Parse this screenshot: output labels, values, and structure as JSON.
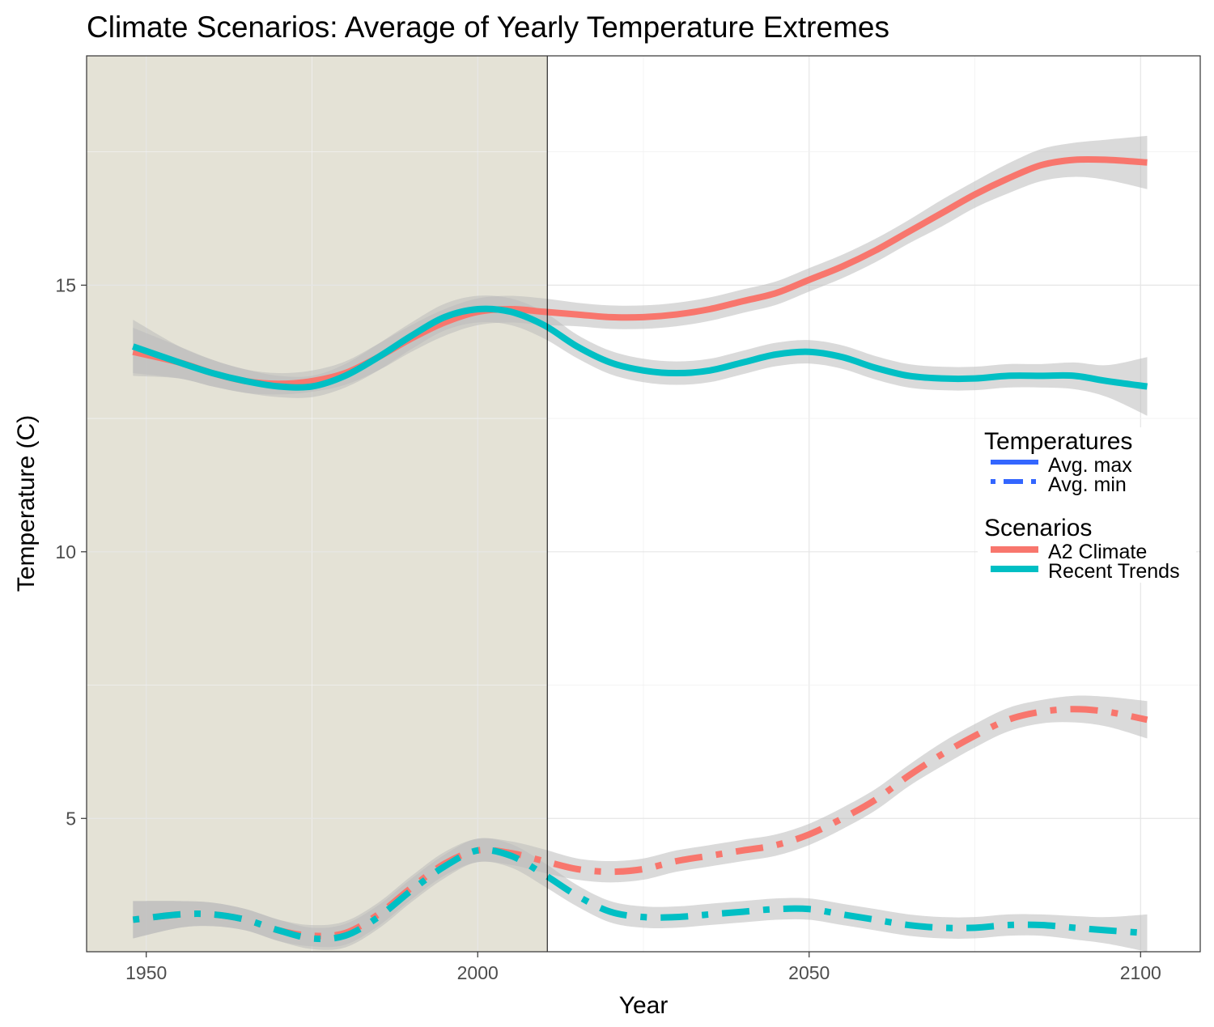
{
  "chart_data": {
    "type": "line",
    "title": "Climate Scenarios: Average of Yearly Temperature Extremes",
    "xlabel": "Year",
    "ylabel": "Temperature (C)",
    "xlim": [
      1941,
      2109
    ],
    "ylim": [
      2.5,
      19.3
    ],
    "x_ticks": [
      1950,
      2000,
      2050,
      2100
    ],
    "y_ticks": [
      5,
      10,
      15
    ],
    "grid": true,
    "shaded_region": {
      "from": 1941,
      "to": 2010.5,
      "color": "#e4e2d6"
    },
    "vline_x": 2010.5,
    "legend": {
      "position": "right",
      "groups": [
        {
          "title": "Temperatures",
          "items": [
            {
              "label": "Avg. max",
              "linetype": "solid"
            },
            {
              "label": "Avg. min",
              "linetype": "dotdash"
            }
          ]
        },
        {
          "title": "Scenarios",
          "items": [
            {
              "label": "A2 Climate",
              "color": "#f8766d"
            },
            {
              "label": "Recent Trends",
              "color": "#00bfc4"
            }
          ]
        }
      ]
    },
    "legend_key_color": "#3366ff",
    "band_color": "#bbbbbb",
    "series": [
      {
        "name": "A2 Climate",
        "temperature": "Avg. max",
        "color": "#f8766d",
        "linetype": "solid",
        "points": [
          [
            1948,
            13.75
          ],
          [
            1955,
            13.55
          ],
          [
            1960,
            13.35
          ],
          [
            1965,
            13.2
          ],
          [
            1970,
            13.15
          ],
          [
            1975,
            13.2
          ],
          [
            1980,
            13.35
          ],
          [
            1985,
            13.65
          ],
          [
            1990,
            14.0
          ],
          [
            1995,
            14.3
          ],
          [
            2000,
            14.5
          ],
          [
            2005,
            14.55
          ],
          [
            2010,
            14.5
          ],
          [
            2015,
            14.45
          ],
          [
            2020,
            14.4
          ],
          [
            2025,
            14.4
          ],
          [
            2030,
            14.45
          ],
          [
            2035,
            14.55
          ],
          [
            2040,
            14.7
          ],
          [
            2045,
            14.85
          ],
          [
            2050,
            15.1
          ],
          [
            2055,
            15.35
          ],
          [
            2060,
            15.65
          ],
          [
            2065,
            16.0
          ],
          [
            2070,
            16.35
          ],
          [
            2075,
            16.7
          ],
          [
            2080,
            17.0
          ],
          [
            2085,
            17.25
          ],
          [
            2090,
            17.35
          ],
          [
            2095,
            17.35
          ],
          [
            2101,
            17.3
          ]
        ],
        "band": [
          0.45,
          0.3,
          0.25,
          0.22,
          0.2,
          0.2,
          0.22,
          0.25,
          0.25,
          0.25,
          0.25,
          0.25,
          0.25,
          0.22,
          0.22,
          0.22,
          0.22,
          0.22,
          0.22,
          0.22,
          0.22,
          0.22,
          0.22,
          0.22,
          0.25,
          0.25,
          0.28,
          0.3,
          0.32,
          0.38,
          0.5
        ]
      },
      {
        "name": "Recent Trends",
        "temperature": "Avg. max",
        "color": "#00bfc4",
        "linetype": "solid",
        "points": [
          [
            1948,
            13.85
          ],
          [
            1955,
            13.55
          ],
          [
            1960,
            13.35
          ],
          [
            1965,
            13.2
          ],
          [
            1970,
            13.1
          ],
          [
            1975,
            13.1
          ],
          [
            1980,
            13.3
          ],
          [
            1985,
            13.65
          ],
          [
            1990,
            14.05
          ],
          [
            1995,
            14.4
          ],
          [
            2000,
            14.55
          ],
          [
            2005,
            14.5
          ],
          [
            2010,
            14.25
          ],
          [
            2015,
            13.85
          ],
          [
            2020,
            13.55
          ],
          [
            2025,
            13.4
          ],
          [
            2030,
            13.35
          ],
          [
            2035,
            13.4
          ],
          [
            2040,
            13.55
          ],
          [
            2045,
            13.7
          ],
          [
            2050,
            13.75
          ],
          [
            2055,
            13.65
          ],
          [
            2060,
            13.45
          ],
          [
            2065,
            13.3
          ],
          [
            2070,
            13.25
          ],
          [
            2075,
            13.25
          ],
          [
            2080,
            13.3
          ],
          [
            2085,
            13.3
          ],
          [
            2090,
            13.3
          ],
          [
            2095,
            13.2
          ],
          [
            2101,
            13.1
          ]
        ],
        "band": [
          0.5,
          0.3,
          0.25,
          0.22,
          0.2,
          0.2,
          0.22,
          0.25,
          0.25,
          0.25,
          0.25,
          0.25,
          0.25,
          0.22,
          0.22,
          0.22,
          0.22,
          0.22,
          0.22,
          0.22,
          0.22,
          0.22,
          0.22,
          0.22,
          0.22,
          0.22,
          0.22,
          0.22,
          0.25,
          0.3,
          0.55
        ]
      },
      {
        "name": "A2 Climate",
        "temperature": "Avg. min",
        "color": "#f8766d",
        "linetype": "dotdash",
        "points": [
          [
            1948,
            3.1
          ],
          [
            1955,
            3.2
          ],
          [
            1960,
            3.2
          ],
          [
            1965,
            3.1
          ],
          [
            1970,
            2.9
          ],
          [
            1975,
            2.8
          ],
          [
            1980,
            2.85
          ],
          [
            1985,
            3.2
          ],
          [
            1990,
            3.7
          ],
          [
            1995,
            4.15
          ],
          [
            2000,
            4.4
          ],
          [
            2005,
            4.35
          ],
          [
            2010,
            4.2
          ],
          [
            2015,
            4.05
          ],
          [
            2020,
            4.0
          ],
          [
            2025,
            4.05
          ],
          [
            2030,
            4.2
          ],
          [
            2035,
            4.3
          ],
          [
            2040,
            4.4
          ],
          [
            2045,
            4.5
          ],
          [
            2050,
            4.7
          ],
          [
            2055,
            5.0
          ],
          [
            2060,
            5.35
          ],
          [
            2065,
            5.8
          ],
          [
            2070,
            6.2
          ],
          [
            2075,
            6.55
          ],
          [
            2080,
            6.85
          ],
          [
            2085,
            7.0
          ],
          [
            2090,
            7.05
          ],
          [
            2095,
            7.0
          ],
          [
            2101,
            6.85
          ]
        ],
        "band": [
          0.35,
          0.25,
          0.22,
          0.2,
          0.2,
          0.2,
          0.22,
          0.22,
          0.22,
          0.22,
          0.22,
          0.22,
          0.22,
          0.2,
          0.2,
          0.2,
          0.2,
          0.2,
          0.2,
          0.2,
          0.2,
          0.2,
          0.2,
          0.2,
          0.22,
          0.22,
          0.22,
          0.22,
          0.25,
          0.28,
          0.35
        ]
      },
      {
        "name": "Recent Trends",
        "temperature": "Avg. min",
        "color": "#00bfc4",
        "linetype": "dotdash",
        "points": [
          [
            1948,
            3.1
          ],
          [
            1955,
            3.2
          ],
          [
            1960,
            3.2
          ],
          [
            1965,
            3.1
          ],
          [
            1970,
            2.9
          ],
          [
            1975,
            2.75
          ],
          [
            1980,
            2.8
          ],
          [
            1985,
            3.15
          ],
          [
            1990,
            3.65
          ],
          [
            1995,
            4.1
          ],
          [
            2000,
            4.4
          ],
          [
            2005,
            4.3
          ],
          [
            2010,
            3.95
          ],
          [
            2015,
            3.55
          ],
          [
            2020,
            3.25
          ],
          [
            2025,
            3.15
          ],
          [
            2030,
            3.15
          ],
          [
            2035,
            3.2
          ],
          [
            2040,
            3.25
          ],
          [
            2045,
            3.3
          ],
          [
            2050,
            3.3
          ],
          [
            2055,
            3.2
          ],
          [
            2060,
            3.1
          ],
          [
            2065,
            3.0
          ],
          [
            2070,
            2.95
          ],
          [
            2075,
            2.95
          ],
          [
            2080,
            3.0
          ],
          [
            2085,
            3.0
          ],
          [
            2090,
            2.95
          ],
          [
            2095,
            2.9
          ],
          [
            2101,
            2.85
          ]
        ],
        "band": [
          0.35,
          0.25,
          0.22,
          0.2,
          0.2,
          0.2,
          0.22,
          0.22,
          0.22,
          0.22,
          0.22,
          0.22,
          0.22,
          0.2,
          0.2,
          0.2,
          0.2,
          0.2,
          0.2,
          0.2,
          0.2,
          0.2,
          0.2,
          0.2,
          0.2,
          0.2,
          0.2,
          0.2,
          0.22,
          0.25,
          0.35
        ]
      }
    ]
  }
}
